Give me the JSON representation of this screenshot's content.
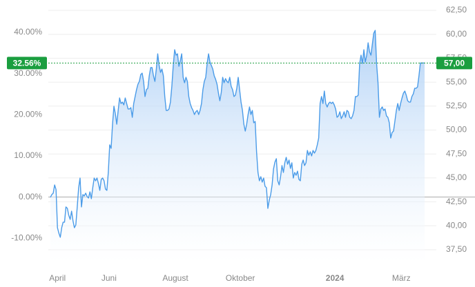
{
  "chart_data": {
    "type": "line",
    "ylim": [
      -12.79,
      45.35
    ],
    "yticks": [
      {
        "value": -10,
        "label": "-10.00%"
      },
      {
        "value": 0,
        "label": "0.00%"
      },
      {
        "value": 10,
        "label": "10.00%"
      },
      {
        "value": 20,
        "label": "20.00%"
      },
      {
        "value": 30,
        "label": "30.00%"
      },
      {
        "value": 40,
        "label": "40.00%"
      }
    ],
    "y2lim": [
      37.5,
      62.5
    ],
    "y2ticks": [
      {
        "value": 37.5,
        "label": "37,50"
      },
      {
        "value": 40,
        "label": "40,00"
      },
      {
        "value": 42.5,
        "label": "42,50"
      },
      {
        "value": 45,
        "label": "45,00"
      },
      {
        "value": 47.5,
        "label": "47,50"
      },
      {
        "value": 50,
        "label": "50,00"
      },
      {
        "value": 52.5,
        "label": "52,50"
      },
      {
        "value": 55,
        "label": "55,00"
      },
      {
        "value": 57.5,
        "label": "57,50"
      },
      {
        "value": 60,
        "label": "60,00"
      },
      {
        "value": 62.5,
        "label": "62,50"
      }
    ],
    "xlim": [
      0,
      265
    ],
    "xticks": [
      {
        "value": 5,
        "label": "April"
      },
      {
        "value": 41.5,
        "label": "Juni"
      },
      {
        "value": 88.5,
        "label": "August"
      },
      {
        "value": 134.5,
        "label": "Oktober"
      },
      {
        "value": 201.5,
        "label": "2024",
        "bold": true
      },
      {
        "value": 248.5,
        "label": "März"
      }
    ],
    "grid": true,
    "current": {
      "value": 57,
      "label": "57,00",
      "pct_value": 32.56,
      "pct_label": "32.56%",
      "color": "#1a9e3f"
    },
    "series": [
      {
        "color": "#4a9be8",
        "axis": "y2",
        "values": [
          42.97,
          43.26,
          43.41,
          44.27,
          43.77,
          39.8,
          39.23,
          38.8,
          39.8,
          40.38,
          40.38,
          41.97,
          41.82,
          41.1,
          40.67,
          41.53,
          40.52,
          39.8,
          40.09,
          41.97,
          43.98,
          44.99,
          41.97,
          43.26,
          43.12,
          43.41,
          43.05,
          42.9,
          43.55,
          42.83,
          43.98,
          44.99,
          44.7,
          44.99,
          44.42,
          43.7,
          44.85,
          44.99,
          44.7,
          43.84,
          43.7,
          45.57,
          48.45,
          48.09,
          50.61,
          52.49,
          51.69,
          50.61,
          52.05,
          53.35,
          52.77,
          52.92,
          52.63,
          53.35,
          52.77,
          52.2,
          52.2,
          52.34,
          51.33,
          52.77,
          53.5,
          54.22,
          54.79,
          55.08,
          55.8,
          55.94,
          55.08,
          53.5,
          54.22,
          54.36,
          55.66,
          56.52,
          56.52,
          55.66,
          55.08,
          56.37,
          57.96,
          56.74,
          56.02,
          56.37,
          55.66,
          53.5,
          52.05,
          52.05,
          52.2,
          52.92,
          54.57,
          56.74,
          58.39,
          57.82,
          57.96,
          56.66,
          57.24,
          57.96,
          55.51,
          54.94,
          55.51,
          55.08,
          53.5,
          52.77,
          52.34,
          52.05,
          51.62,
          51.91,
          52.05,
          51.62,
          52.05,
          52.77,
          54.22,
          55.08,
          55.51,
          56.95,
          57.96,
          57.1,
          56.74,
          56.37,
          55.66,
          55.3,
          54.79,
          53.85,
          53.06,
          53.93,
          55.51,
          54.94,
          55.37,
          55.08,
          54.94,
          55.51,
          54.57,
          54.22,
          53.5,
          53.64,
          54.36,
          55.51,
          54.22,
          52.92,
          52.05,
          50.61,
          49.89,
          50.61,
          51.62,
          52.41,
          51.62,
          52.05,
          50.76,
          50.9,
          47.73,
          45.57,
          44.7,
          45.13,
          44.56,
          44.99,
          44.13,
          43.98,
          41.82,
          42.69,
          43.26,
          44.27,
          45.93,
          46.65,
          47.01,
          44.7,
          44.27,
          45.13,
          46.29,
          45.57,
          46.58,
          47.15,
          46.43,
          46.87,
          46.0,
          46.58,
          44.99,
          45.57,
          45.28,
          45.71,
          44.85,
          44.7,
          46.43,
          46.87,
          46.29,
          46.58,
          47.87,
          47.37,
          47.73,
          47.3,
          47.87,
          47.59,
          47.87,
          48.45,
          49.17,
          52.77,
          53.5,
          52.77,
          54.07,
          52.77,
          52.41,
          52.77,
          52.92,
          52.77,
          52.92,
          52.63,
          52.2,
          51.33,
          51.48,
          51.91,
          51.19,
          51.48,
          51.91,
          51.33,
          52.05,
          51.91,
          51.33,
          51.19,
          51.48,
          52.05,
          53.5,
          53.5,
          53.64,
          56.95,
          57.82,
          56.95,
          58.39,
          57.1,
          57.82,
          59.11,
          58.18,
          57.82,
          58.97,
          60.12,
          60.41,
          56.95,
          54.94,
          51.33,
          52.2,
          52.41,
          52.05,
          52.2,
          51.48,
          51.33,
          50.76,
          49.17,
          49.75,
          49.89,
          50.97,
          52.05,
          52.77,
          52.05,
          52.77,
          53.35,
          53.85,
          54.07,
          53.64,
          53.06,
          52.92,
          52.92,
          53.5,
          53.78,
          54.36,
          54.36,
          54.5,
          55.66,
          57.0,
          57.0,
          57.0,
          57.0
        ]
      }
    ]
  }
}
